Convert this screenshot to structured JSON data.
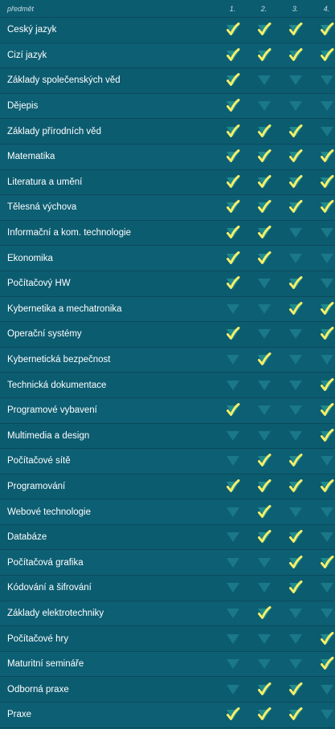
{
  "header": {
    "subject_label": "předmět",
    "years": [
      "1.",
      "2.",
      "3.",
      "4."
    ]
  },
  "colors": {
    "check": "#f4ef6a",
    "triangle_on": "#1f8a8c",
    "triangle_off": "#1a7888"
  },
  "icons": {
    "active": "check-icon",
    "inactive": "triangle-down-icon"
  },
  "rows": [
    {
      "name": "Český jazyk",
      "years": [
        true,
        true,
        true,
        true
      ]
    },
    {
      "name": "Cizí jazyk",
      "years": [
        true,
        true,
        true,
        true
      ]
    },
    {
      "name": "Základy společenských věd",
      "years": [
        true,
        false,
        false,
        false
      ]
    },
    {
      "name": "Dějepis",
      "years": [
        true,
        false,
        false,
        false
      ]
    },
    {
      "name": "Základy přírodních věd",
      "years": [
        true,
        true,
        true,
        false
      ]
    },
    {
      "name": "Matematika",
      "years": [
        true,
        true,
        true,
        true
      ]
    },
    {
      "name": "Literatura a umění",
      "years": [
        true,
        true,
        true,
        true
      ]
    },
    {
      "name": "Tělesná výchova",
      "years": [
        true,
        true,
        true,
        true
      ]
    },
    {
      "name": "Informační a kom. technologie",
      "years": [
        true,
        true,
        false,
        false
      ]
    },
    {
      "name": "Ekonomika",
      "years": [
        true,
        true,
        false,
        false
      ]
    },
    {
      "name": "Počítačový HW",
      "years": [
        true,
        false,
        true,
        false
      ]
    },
    {
      "name": "Kybernetika a mechatronika",
      "years": [
        false,
        false,
        true,
        true
      ]
    },
    {
      "name": "Operační systémy",
      "years": [
        true,
        false,
        false,
        true
      ]
    },
    {
      "name": "Kybernetická bezpečnost",
      "years": [
        false,
        true,
        false,
        false
      ]
    },
    {
      "name": "Technická dokumentace",
      "years": [
        false,
        false,
        false,
        true
      ]
    },
    {
      "name": "Programové vybavení",
      "years": [
        true,
        false,
        false,
        true
      ]
    },
    {
      "name": "Multimedia a design",
      "years": [
        false,
        false,
        false,
        true
      ]
    },
    {
      "name": "Počítačové sítě",
      "years": [
        false,
        true,
        true,
        false
      ]
    },
    {
      "name": "Programování",
      "years": [
        true,
        true,
        true,
        true
      ]
    },
    {
      "name": "Webové technologie",
      "years": [
        false,
        true,
        false,
        false
      ]
    },
    {
      "name": "Databáze",
      "years": [
        false,
        true,
        true,
        false
      ]
    },
    {
      "name": "Počítačová grafika",
      "years": [
        false,
        false,
        true,
        true
      ]
    },
    {
      "name": "Kódování a šifrování",
      "years": [
        false,
        false,
        true,
        false
      ]
    },
    {
      "name": "Základy elektrotechniky",
      "years": [
        false,
        true,
        false,
        false
      ]
    },
    {
      "name": "Počítačové hry",
      "years": [
        false,
        false,
        false,
        true
      ]
    },
    {
      "name": "Maturitní semináře",
      "years": [
        false,
        false,
        false,
        true
      ]
    },
    {
      "name": "Odborná praxe",
      "years": [
        false,
        true,
        true,
        false
      ]
    },
    {
      "name": "Praxe",
      "years": [
        true,
        true,
        true,
        false
      ]
    }
  ]
}
